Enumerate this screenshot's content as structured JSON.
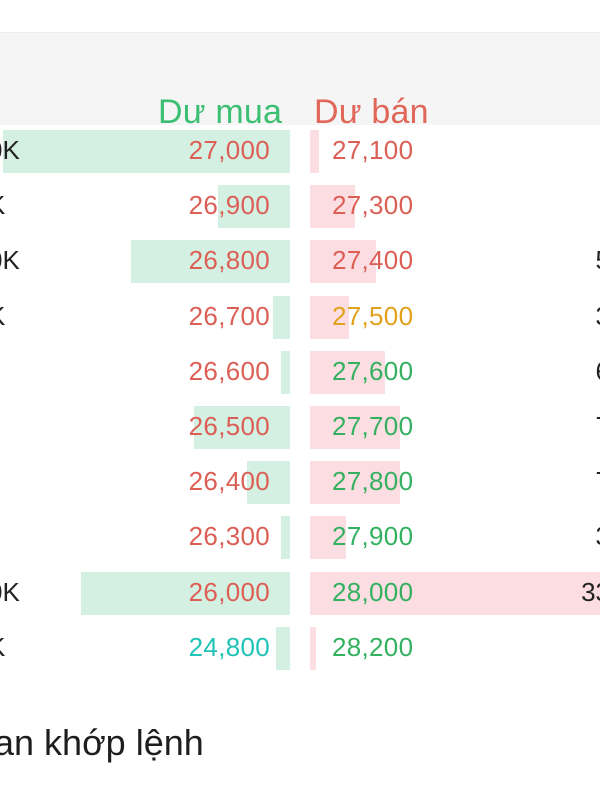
{
  "header": {
    "buy_label": "Dư mua",
    "sell_label": "Dư bán"
  },
  "colors": {
    "buy_header": "#3cbf73",
    "sell_header": "#e0675a",
    "ref_red": "#dc5f56",
    "green": "#34b160",
    "yellow": "#e2a21b",
    "teal": "#20c3b6"
  },
  "orderbook": [
    {
      "buy_vol": "0K",
      "buy_price": "27,000",
      "buy_color": "#dc5f56",
      "buy_bar": 0.99,
      "sell_price": "27,100",
      "sell_color": "#dc5f56",
      "sell_bar": 0.03,
      "sell_vol": ""
    },
    {
      "buy_vol": "K",
      "buy_price": "26,900",
      "buy_color": "#dc5f56",
      "buy_bar": 0.25,
      "sell_price": "27,300",
      "sell_color": "#dc5f56",
      "sell_bar": 0.15,
      "sell_vol": ""
    },
    {
      "buy_vol": "0K",
      "buy_price": "26,800",
      "buy_color": "#dc5f56",
      "buy_bar": 0.55,
      "sell_price": "27,400",
      "sell_color": "#dc5f56",
      "sell_bar": 0.22,
      "sell_vol": "5"
    },
    {
      "buy_vol": "K",
      "buy_price": "26,700",
      "buy_color": "#dc5f56",
      "buy_bar": 0.06,
      "sell_price": "27,500",
      "sell_color": "#e2a21b",
      "sell_bar": 0.13,
      "sell_vol": "3"
    },
    {
      "buy_vol": "",
      "buy_price": "26,600",
      "buy_color": "#dc5f56",
      "buy_bar": 0.03,
      "sell_price": "27,600",
      "sell_color": "#34b160",
      "sell_bar": 0.25,
      "sell_vol": "6"
    },
    {
      "buy_vol": "",
      "buy_price": "26,500",
      "buy_color": "#dc5f56",
      "buy_bar": 0.33,
      "sell_price": "27,700",
      "sell_color": "#34b160",
      "sell_bar": 0.3,
      "sell_vol": "7"
    },
    {
      "buy_vol": "",
      "buy_price": "26,400",
      "buy_color": "#dc5f56",
      "buy_bar": 0.15,
      "sell_price": "27,800",
      "sell_color": "#34b160",
      "sell_bar": 0.3,
      "sell_vol": "7"
    },
    {
      "buy_vol": "",
      "buy_price": "26,300",
      "buy_color": "#dc5f56",
      "buy_bar": 0.03,
      "sell_price": "27,900",
      "sell_color": "#34b160",
      "sell_bar": 0.12,
      "sell_vol": "3"
    },
    {
      "buy_vol": "0K",
      "buy_price": "26,000",
      "buy_color": "#dc5f56",
      "buy_bar": 0.72,
      "sell_price": "28,000",
      "sell_color": "#34b160",
      "sell_bar": 1.0,
      "sell_vol": "33"
    },
    {
      "buy_vol": "K",
      "buy_price": "24,800",
      "buy_color": "#20c3b6",
      "buy_bar": 0.05,
      "sell_price": "28,200",
      "sell_color": "#34b160",
      "sell_bar": 0.02,
      "sell_vol": ""
    }
  ],
  "section": {
    "title": "an khớp lệnh"
  }
}
